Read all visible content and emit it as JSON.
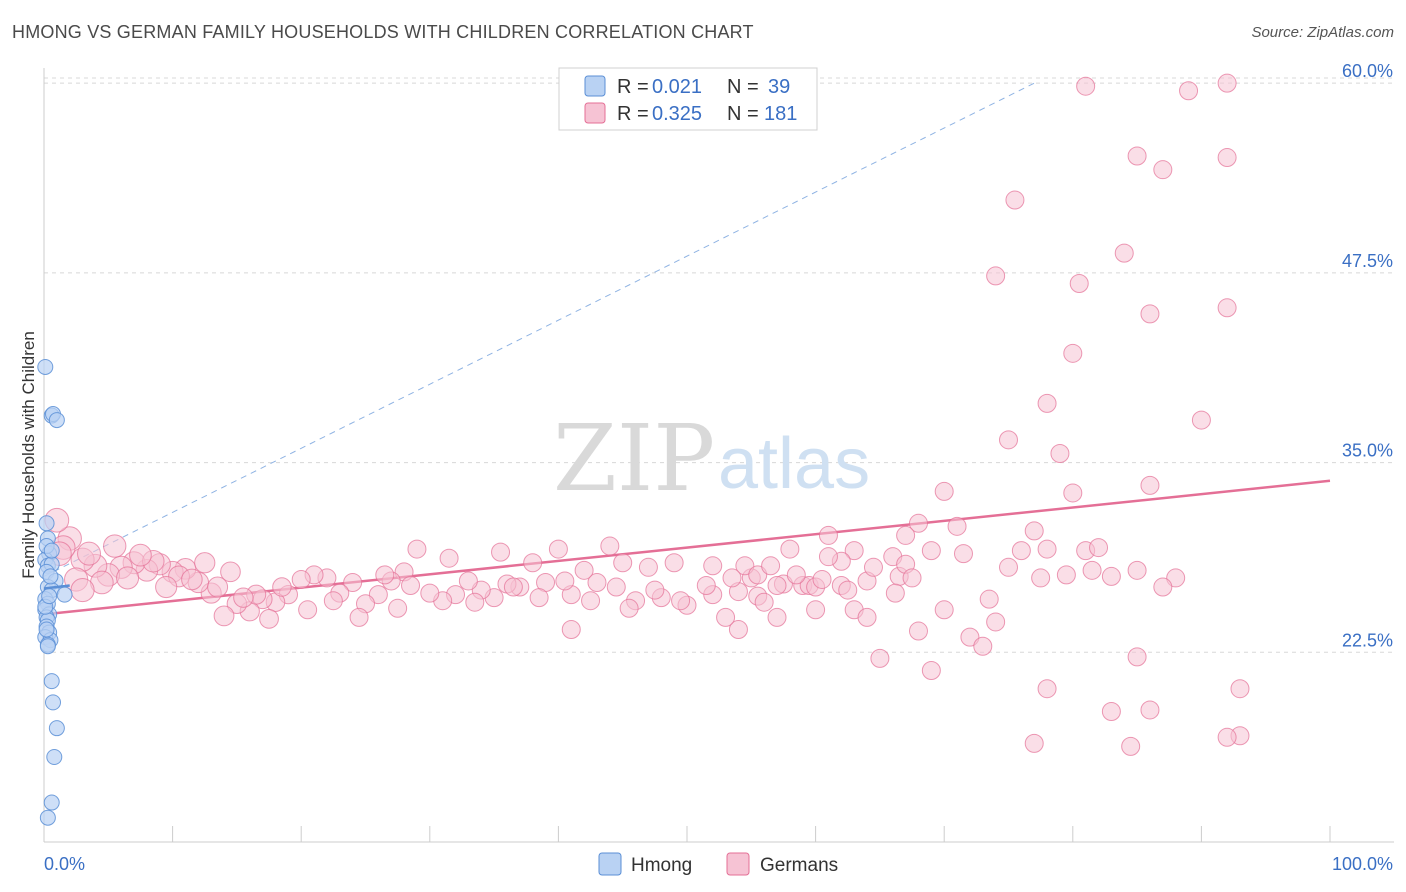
{
  "header": {
    "title": "HMONG VS GERMAN FAMILY HOUSEHOLDS WITH CHILDREN CORRELATION CHART",
    "source": "Source: ZipAtlas.com"
  },
  "watermark": {
    "zip": "ZIP",
    "atlas": "atlas"
  },
  "colors": {
    "hmong": "#5b8fd6",
    "hmong_fill": "#b9d2f3",
    "germans": "#e46f96",
    "germans_fill": "#f6c3d4",
    "tick": "#3a6fc4",
    "grid": "#d8d8d8"
  },
  "legend": {
    "rows": [
      {
        "series": "hmong",
        "r_label": "R =",
        "r_value": "0.021",
        "n_label": "N =",
        "n_value": "39"
      },
      {
        "series": "germans",
        "r_label": "R =",
        "r_value": "0.325",
        "n_label": "N =",
        "n_value": "181"
      }
    ]
  },
  "chart_data": {
    "type": "scatter",
    "title": "HMONG VS GERMAN FAMILY HOUSEHOLDS WITH CHILDREN CORRELATION CHART",
    "xlabel": "",
    "ylabel": "Family Households with Children",
    "xlim": [
      0,
      100
    ],
    "ylim": [
      10,
      61
    ],
    "x_tick_labels": [
      "0.0%",
      "100.0%"
    ],
    "y_ticks": [
      22.5,
      35.0,
      47.5,
      60.0
    ],
    "y_tick_labels": [
      "22.5%",
      "35.0%",
      "47.5%",
      "60.0%"
    ],
    "grid": true,
    "legend_position": "top-center",
    "series": [
      {
        "name": "Hmong",
        "key": "hmong",
        "points": [
          [
            0.1,
            41.3
          ],
          [
            0.6,
            38.1
          ],
          [
            0.7,
            38.2
          ],
          [
            1.0,
            37.8
          ],
          [
            0.2,
            31.0
          ],
          [
            0.3,
            30.0
          ],
          [
            0.4,
            29.0
          ],
          [
            0.1,
            28.6
          ],
          [
            0.3,
            28.2
          ],
          [
            0.6,
            28.3
          ],
          [
            0.2,
            27.8
          ],
          [
            0.9,
            27.2
          ],
          [
            0.3,
            26.8
          ],
          [
            0.6,
            26.6
          ],
          [
            1.6,
            26.3
          ],
          [
            0.1,
            26.0
          ],
          [
            0.3,
            25.7
          ],
          [
            0.1,
            25.3
          ],
          [
            0.4,
            25.0
          ],
          [
            0.2,
            24.8
          ],
          [
            0.3,
            24.6
          ],
          [
            0.2,
            24.2
          ],
          [
            0.4,
            23.8
          ],
          [
            0.1,
            23.5
          ],
          [
            0.5,
            23.3
          ],
          [
            0.3,
            23.0
          ],
          [
            0.6,
            20.6
          ],
          [
            0.7,
            19.2
          ],
          [
            1.0,
            17.5
          ],
          [
            0.8,
            15.6
          ],
          [
            0.6,
            12.6
          ],
          [
            0.3,
            11.6
          ],
          [
            0.2,
            29.5
          ],
          [
            0.5,
            27.5
          ],
          [
            0.1,
            25.5
          ],
          [
            0.4,
            26.2
          ],
          [
            0.2,
            24.0
          ],
          [
            0.6,
            29.2
          ],
          [
            0.3,
            22.9
          ]
        ],
        "trend": {
          "x": [
            0,
            2
          ],
          "y": [
            26.7,
            26.9
          ]
        },
        "extension": {
          "x": [
            0,
            77
          ],
          "y": [
            27.5,
            60.0
          ]
        }
      },
      {
        "name": "Germans",
        "key": "germans",
        "points": [
          [
            81,
            59.8
          ],
          [
            89,
            59.5
          ],
          [
            92,
            60.0
          ],
          [
            85,
            55.2
          ],
          [
            92,
            55.1
          ],
          [
            87,
            54.3
          ],
          [
            75.5,
            52.3
          ],
          [
            84,
            48.8
          ],
          [
            74,
            47.3
          ],
          [
            80.5,
            46.8
          ],
          [
            86,
            44.8
          ],
          [
            92,
            45.2
          ],
          [
            80,
            42.2
          ],
          [
            78,
            38.9
          ],
          [
            90,
            37.8
          ],
          [
            75,
            36.5
          ],
          [
            79,
            35.6
          ],
          [
            80,
            33.0
          ],
          [
            70,
            33.1
          ],
          [
            86,
            33.5
          ],
          [
            68,
            31.0
          ],
          [
            71,
            30.8
          ],
          [
            77,
            30.5
          ],
          [
            61,
            30.2
          ],
          [
            67,
            30.2
          ],
          [
            78,
            29.3
          ],
          [
            81,
            29.2
          ],
          [
            76,
            29.2
          ],
          [
            82,
            29.4
          ],
          [
            69,
            29.2
          ],
          [
            71.5,
            29.0
          ],
          [
            66,
            28.8
          ],
          [
            58,
            29.3
          ],
          [
            63,
            29.2
          ],
          [
            88,
            27.4
          ],
          [
            66.5,
            27.5
          ],
          [
            62,
            28.5
          ],
          [
            67,
            28.3
          ],
          [
            61,
            28.8
          ],
          [
            59,
            26.9
          ],
          [
            64,
            27.2
          ],
          [
            59.5,
            26.9
          ],
          [
            55,
            27.4
          ],
          [
            54,
            26.5
          ],
          [
            57.5,
            27.0
          ],
          [
            52,
            28.2
          ],
          [
            49,
            28.4
          ],
          [
            54.5,
            28.2
          ],
          [
            57,
            26.9
          ],
          [
            60,
            26.8
          ],
          [
            62,
            26.9
          ],
          [
            55.5,
            26.2
          ],
          [
            57,
            24.8
          ],
          [
            60,
            25.3
          ],
          [
            73.5,
            26.0
          ],
          [
            63,
            25.3
          ],
          [
            52,
            26.3
          ],
          [
            50,
            25.6
          ],
          [
            48,
            26.1
          ],
          [
            46,
            25.9
          ],
          [
            44.5,
            26.8
          ],
          [
            41,
            26.3
          ],
          [
            41,
            24.0
          ],
          [
            54,
            24.0
          ],
          [
            53,
            24.8
          ],
          [
            56,
            25.8
          ],
          [
            68,
            23.9
          ],
          [
            72,
            23.5
          ],
          [
            65,
            22.1
          ],
          [
            69,
            21.3
          ],
          [
            73,
            22.9
          ],
          [
            85,
            22.2
          ],
          [
            78,
            20.1
          ],
          [
            83,
            18.6
          ],
          [
            86,
            18.7
          ],
          [
            93,
            20.1
          ],
          [
            77,
            16.5
          ],
          [
            84.5,
            16.3
          ],
          [
            93,
            17.0
          ],
          [
            92,
            16.9
          ],
          [
            70,
            25.3
          ],
          [
            74,
            24.5
          ],
          [
            64,
            24.8
          ],
          [
            44,
            29.5
          ],
          [
            43,
            27.1
          ],
          [
            45,
            28.4
          ],
          [
            47,
            28.1
          ],
          [
            42,
            27.9
          ],
          [
            40,
            29.3
          ],
          [
            39,
            27.1
          ],
          [
            38,
            28.4
          ],
          [
            37,
            26.8
          ],
          [
            36,
            27.0
          ],
          [
            35,
            26.1
          ],
          [
            34,
            26.6
          ],
          [
            33,
            27.2
          ],
          [
            32,
            26.3
          ],
          [
            31,
            25.9
          ],
          [
            30,
            26.4
          ],
          [
            29,
            29.3
          ],
          [
            28,
            27.8
          ],
          [
            27,
            27.2
          ],
          [
            26,
            26.3
          ],
          [
            25,
            25.7
          ],
          [
            24,
            27.1
          ],
          [
            23,
            26.4
          ],
          [
            22,
            27.4
          ],
          [
            21,
            27.6
          ],
          [
            20,
            27.3
          ],
          [
            19,
            26.3
          ],
          [
            18,
            25.8
          ],
          [
            17,
            26.0
          ],
          [
            16,
            25.2
          ],
          [
            15,
            25.7
          ],
          [
            14,
            24.9
          ],
          [
            13,
            26.4
          ],
          [
            12,
            27.1
          ],
          [
            11,
            28.0
          ],
          [
            10,
            27.8
          ],
          [
            9,
            28.3
          ],
          [
            8,
            27.9
          ],
          [
            7,
            28.4
          ],
          [
            6,
            28.1
          ],
          [
            5,
            27.6
          ],
          [
            4,
            28.2
          ],
          [
            3,
            28.6
          ],
          [
            2,
            30.0
          ],
          [
            1,
            31.2
          ],
          [
            1.5,
            29.4
          ],
          [
            2.5,
            27.3
          ],
          [
            3.5,
            29.0
          ],
          [
            6.5,
            27.4
          ],
          [
            8.5,
            28.5
          ],
          [
            10.5,
            27.5
          ],
          [
            12.5,
            28.4
          ],
          [
            14.5,
            27.8
          ],
          [
            16.5,
            26.3
          ],
          [
            18.5,
            26.8
          ],
          [
            22.5,
            25.9
          ],
          [
            24.5,
            24.8
          ],
          [
            27.5,
            25.4
          ],
          [
            33.5,
            25.8
          ],
          [
            36.5,
            26.8
          ],
          [
            38.5,
            26.1
          ],
          [
            40.5,
            27.2
          ],
          [
            42.5,
            25.9
          ],
          [
            45.5,
            25.4
          ],
          [
            47.5,
            26.6
          ],
          [
            49.5,
            25.9
          ],
          [
            51.5,
            26.9
          ],
          [
            53.5,
            27.4
          ],
          [
            55.5,
            27.6
          ],
          [
            56.5,
            28.2
          ],
          [
            58.5,
            27.6
          ],
          [
            60.5,
            27.3
          ],
          [
            62.5,
            26.6
          ],
          [
            64.5,
            28.1
          ],
          [
            66.2,
            26.4
          ],
          [
            67.5,
            27.4
          ],
          [
            75,
            28.1
          ],
          [
            79.5,
            27.6
          ],
          [
            77.5,
            27.4
          ],
          [
            81.5,
            27.9
          ],
          [
            83,
            27.5
          ],
          [
            85,
            27.9
          ],
          [
            87,
            26.8
          ],
          [
            35.5,
            29.1
          ],
          [
            31.5,
            28.7
          ],
          [
            28.5,
            26.9
          ],
          [
            26.5,
            27.6
          ],
          [
            20.5,
            25.3
          ],
          [
            17.5,
            24.7
          ],
          [
            15.5,
            26.1
          ],
          [
            13.5,
            26.8
          ],
          [
            11.5,
            27.3
          ],
          [
            9.5,
            26.8
          ],
          [
            7.5,
            28.9
          ],
          [
            5.5,
            29.5
          ],
          [
            4.5,
            27.1
          ],
          [
            3,
            26.6
          ],
          [
            1.2,
            29.0
          ]
        ],
        "trend": {
          "x": [
            0,
            100
          ],
          "y": [
            25.0,
            33.8
          ]
        }
      }
    ]
  },
  "bottom_legend": [
    {
      "key": "hmong",
      "label": "Hmong"
    },
    {
      "key": "germans",
      "label": "Germans"
    }
  ]
}
